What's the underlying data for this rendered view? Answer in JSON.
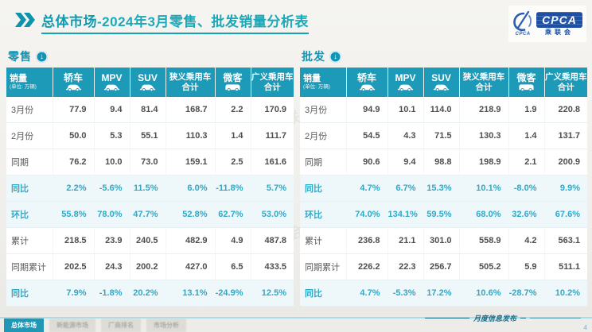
{
  "header": {
    "title_main": "总体市场",
    "title_rest": "-2024年3月零售、批发销量分析表",
    "logo": {
      "box_text": "CPCA",
      "sub_text": "乘联会",
      "swoosh_caption": "CPCA"
    }
  },
  "columns": [
    {
      "label": "销量",
      "sub": "(单位: 万辆)",
      "icon": null,
      "type": "first"
    },
    {
      "label": "轿车",
      "icon": "car-icon",
      "type": "icon"
    },
    {
      "label": "MPV",
      "icon": "car-icon",
      "type": "icon"
    },
    {
      "label": "SUV",
      "icon": "car-icon",
      "type": "icon"
    },
    {
      "label": "狭义乘用车",
      "label2": "合计",
      "icon": null,
      "type": "two"
    },
    {
      "label": "微客",
      "icon": "van-icon",
      "type": "icon"
    },
    {
      "label": "广义乘用车",
      "label2": "合计",
      "icon": null,
      "type": "two"
    }
  ],
  "tables": [
    {
      "id": "retail",
      "label": "零售",
      "rows": [
        {
          "label": "3月份",
          "highlight": false,
          "values": [
            "77.9",
            "9.4",
            "81.4",
            "168.7",
            "2.2",
            "170.9"
          ]
        },
        {
          "label": "2月份",
          "highlight": false,
          "values": [
            "50.0",
            "5.3",
            "55.1",
            "110.3",
            "1.4",
            "111.7"
          ]
        },
        {
          "label": "同期",
          "highlight": false,
          "values": [
            "76.2",
            "10.0",
            "73.0",
            "159.1",
            "2.5",
            "161.6"
          ]
        },
        {
          "label": "同比",
          "highlight": true,
          "values": [
            "2.2%",
            "-5.6%",
            "11.5%",
            "6.0%",
            "-11.8%",
            "5.7%"
          ]
        },
        {
          "label": "环比",
          "highlight": true,
          "values": [
            "55.8%",
            "78.0%",
            "47.7%",
            "52.8%",
            "62.7%",
            "53.0%"
          ]
        },
        {
          "label": "累计",
          "highlight": false,
          "values": [
            "218.5",
            "23.9",
            "240.5",
            "482.9",
            "4.9",
            "487.8"
          ]
        },
        {
          "label": "同期累计",
          "highlight": false,
          "values": [
            "202.5",
            "24.3",
            "200.2",
            "427.0",
            "6.5",
            "433.5"
          ]
        },
        {
          "label": "同比",
          "highlight": true,
          "values": [
            "7.9%",
            "-1.8%",
            "20.2%",
            "13.1%",
            "-24.9%",
            "12.5%"
          ]
        }
      ]
    },
    {
      "id": "wholesale",
      "label": "批发",
      "rows": [
        {
          "label": "3月份",
          "highlight": false,
          "values": [
            "94.9",
            "10.1",
            "114.0",
            "218.9",
            "1.9",
            "220.8"
          ]
        },
        {
          "label": "2月份",
          "highlight": false,
          "values": [
            "54.5",
            "4.3",
            "71.5",
            "130.3",
            "1.4",
            "131.7"
          ]
        },
        {
          "label": "同期",
          "highlight": false,
          "values": [
            "90.6",
            "9.4",
            "98.8",
            "198.9",
            "2.1",
            "200.9"
          ]
        },
        {
          "label": "同比",
          "highlight": true,
          "values": [
            "4.7%",
            "6.7%",
            "15.3%",
            "10.1%",
            "-8.0%",
            "9.9%"
          ]
        },
        {
          "label": "环比",
          "highlight": true,
          "values": [
            "74.0%",
            "134.1%",
            "59.5%",
            "68.0%",
            "32.6%",
            "67.6%"
          ]
        },
        {
          "label": "累计",
          "highlight": false,
          "values": [
            "236.8",
            "21.1",
            "301.0",
            "558.9",
            "4.2",
            "563.1"
          ]
        },
        {
          "label": "同期累计",
          "highlight": false,
          "values": [
            "226.2",
            "22.3",
            "256.7",
            "505.2",
            "5.9",
            "511.1"
          ]
        },
        {
          "label": "同比",
          "highlight": true,
          "values": [
            "4.7%",
            "-5.3%",
            "17.2%",
            "10.6%",
            "-28.7%",
            "10.2%"
          ]
        }
      ]
    }
  ],
  "footer": {
    "tabs": [
      {
        "label": "总体市场",
        "active": true
      },
      {
        "label": "新能源市场",
        "active": false
      },
      {
        "label": "厂商排名",
        "active": false
      },
      {
        "label": "市场分析",
        "active": false
      }
    ],
    "release_text": "月度信息发布",
    "page_number": "4"
  },
  "watermark_text": "CPCA 乘联会",
  "colors": {
    "accent_teal": "#1d9ab8",
    "percent_teal": "#2fa9c7",
    "title_teal": "#14a3b6",
    "logo_blue": "#1d4fa5",
    "body_text": "#4e4e4e"
  }
}
